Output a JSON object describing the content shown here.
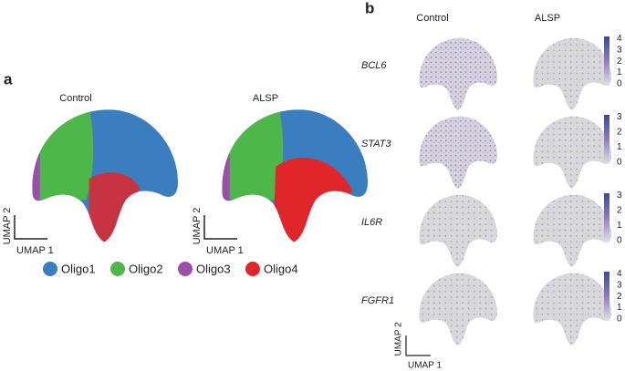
{
  "panel_a": {
    "label": "a",
    "groups": [
      "Control",
      "ALSP"
    ],
    "axis_y": "UMAP 2",
    "axis_x": "UMAP 1",
    "legend": [
      {
        "name": "Oligo1",
        "color": "#3a7ebf"
      },
      {
        "name": "Oligo2",
        "color": "#4db849"
      },
      {
        "name": "Oligo3",
        "color": "#9b4fa8"
      },
      {
        "name": "Oligo4",
        "color": "#e0262a"
      }
    ]
  },
  "panel_b": {
    "label": "b",
    "columns": [
      "Control",
      "ALSP"
    ],
    "axis_y": "UMAP 2",
    "axis_x": "UMAP 1",
    "genes": [
      {
        "name": "BCL6",
        "colorbar_ticks": [
          4,
          3,
          2,
          1,
          0
        ]
      },
      {
        "name": "STAT3",
        "colorbar_ticks": [
          3,
          2,
          1,
          0
        ]
      },
      {
        "name": "IL6R",
        "colorbar_ticks": [
          3,
          2,
          1,
          0
        ]
      },
      {
        "name": "FGFR1",
        "colorbar_ticks": [
          4,
          3,
          2,
          1,
          0
        ]
      }
    ]
  }
}
